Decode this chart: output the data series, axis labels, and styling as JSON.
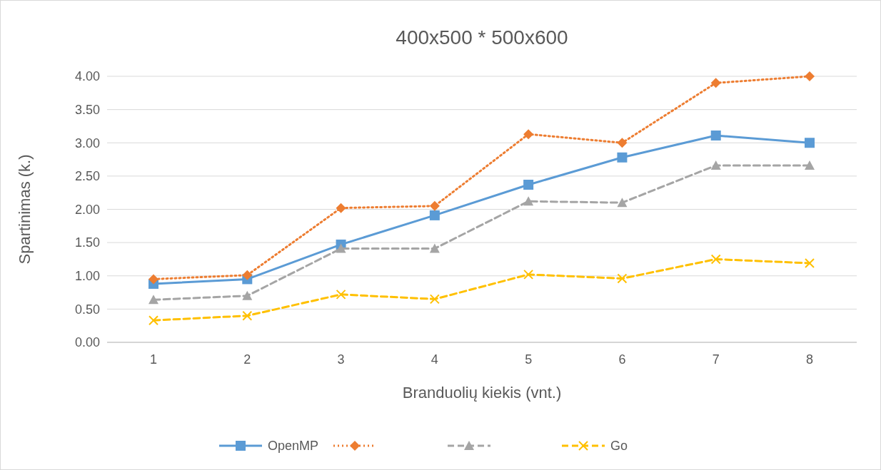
{
  "chart_data": {
    "type": "line",
    "title": "400x500 * 500x600",
    "xlabel": "Branduolių kiekis (vnt.)",
    "ylabel": "Spartinimas (k.)",
    "categories": [
      "1",
      "2",
      "3",
      "4",
      "5",
      "6",
      "7",
      "8"
    ],
    "ylim": [
      0,
      4
    ],
    "yticks": [
      {
        "value": 0,
        "label": "0.00"
      },
      {
        "value": 0.5,
        "label": "0.50"
      },
      {
        "value": 1,
        "label": "1.00"
      },
      {
        "value": 1.5,
        "label": "1.50"
      },
      {
        "value": 2,
        "label": "2.00"
      },
      {
        "value": 2.5,
        "label": "2.50"
      },
      {
        "value": 3,
        "label": "3.00"
      },
      {
        "value": 3.5,
        "label": "3.50"
      },
      {
        "value": 4,
        "label": "4.00"
      }
    ],
    "grid": "y",
    "legend": "bottom",
    "series": [
      {
        "name": "OpenMP",
        "color": "#5b9bd5",
        "marker": "square",
        "line_style": "solid",
        "values": [
          0.88,
          0.95,
          1.47,
          1.91,
          2.37,
          2.78,
          3.11,
          3.0
        ]
      },
      {
        "color": "#ed7d31",
        "marker": "diamond",
        "line_style": "dotted",
        "values": [
          0.95,
          1.01,
          2.02,
          2.05,
          3.13,
          3.0,
          3.9,
          4.0
        ]
      },
      {
        "color": "#a5a5a5",
        "marker": "triangle",
        "line_style": "dashed",
        "values": [
          0.64,
          0.7,
          1.41,
          1.41,
          2.12,
          2.1,
          2.66,
          2.66
        ]
      },
      {
        "name": "Go",
        "color": "#ffc000",
        "marker": "cross",
        "line_style": "dashed",
        "values": [
          0.33,
          0.4,
          0.72,
          0.65,
          1.02,
          0.96,
          1.25,
          1.19
        ]
      }
    ]
  }
}
